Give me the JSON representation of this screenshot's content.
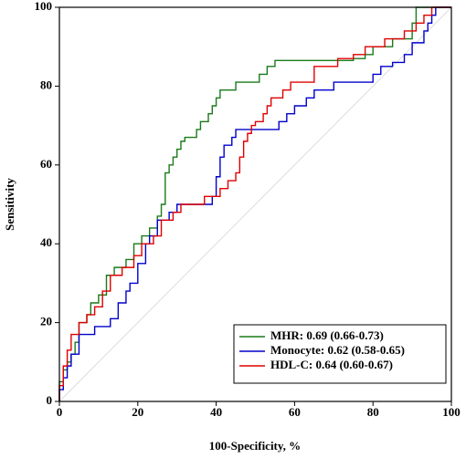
{
  "chart_data": {
    "type": "line",
    "x_label": "100-Specificity, %",
    "y_label": "Sensitivity",
    "xlim": [
      0,
      100
    ],
    "ylim": [
      0,
      100
    ],
    "xticks": [
      0,
      20,
      40,
      60,
      80,
      100
    ],
    "yticks": [
      0,
      20,
      40,
      60,
      80,
      100
    ],
    "legend": "lower right",
    "series": [
      {
        "name": "MHR: 0.69 (0.66-0.73)",
        "color": "#1a7a1a",
        "x": [
          0,
          0,
          1,
          1,
          2,
          2,
          3,
          3,
          4,
          4,
          5,
          5,
          7,
          7,
          8,
          8,
          10,
          10,
          12,
          12,
          14,
          14,
          17,
          17,
          19,
          19,
          21,
          21,
          23,
          23,
          25,
          25,
          26,
          26,
          27,
          27,
          28,
          28,
          29,
          29,
          30,
          30,
          31,
          31,
          32,
          32,
          35,
          35,
          36,
          36,
          38,
          38,
          39,
          39,
          40,
          40,
          41,
          41,
          45,
          45,
          51,
          51,
          53,
          53,
          55,
          55,
          75,
          75,
          78,
          78,
          80,
          80,
          85,
          85,
          90,
          90,
          91,
          91,
          100
        ],
        "values": [
          0,
          5,
          5,
          8,
          8,
          10,
          10,
          12,
          12,
          15,
          15,
          20,
          20,
          22,
          22,
          25,
          25,
          27,
          27,
          32,
          32,
          34,
          34,
          36,
          36,
          40,
          40,
          42,
          42,
          44,
          44,
          47,
          47,
          50,
          50,
          58,
          58,
          60,
          60,
          62,
          62,
          64,
          64,
          66,
          66,
          67,
          67,
          69,
          69,
          71,
          71,
          73,
          73,
          75,
          75,
          77,
          77,
          79,
          79,
          81,
          81,
          83,
          83,
          85,
          85,
          86.5,
          86.5,
          87,
          87,
          88,
          88,
          90,
          90,
          92,
          92,
          96,
          96,
          100,
          100
        ]
      },
      {
        "name": "Monocyte: 0.62 (0.58-0.65)",
        "color": "#0000cc",
        "x": [
          0,
          0,
          1,
          1,
          2,
          2,
          3,
          3,
          5,
          5,
          9,
          9,
          13,
          13,
          15,
          15,
          17,
          17,
          18,
          18,
          20,
          20,
          22,
          22,
          23,
          23,
          25,
          25,
          28,
          28,
          30,
          30,
          39,
          39,
          40,
          40,
          41,
          41,
          42,
          42,
          44,
          44,
          45,
          45,
          56,
          56,
          58,
          58,
          60,
          60,
          63,
          63,
          65,
          65,
          70,
          70,
          80,
          80,
          82,
          82,
          85,
          85,
          88,
          88,
          90,
          90,
          93,
          93,
          94,
          94,
          95,
          95,
          96,
          96,
          100
        ],
        "values": [
          0,
          3,
          3,
          6,
          6,
          9,
          9,
          12,
          12,
          17,
          17,
          19,
          19,
          21,
          21,
          25,
          25,
          28,
          28,
          30,
          30,
          35,
          35,
          40,
          40,
          42,
          42,
          46,
          46,
          48,
          48,
          50,
          50,
          52,
          52,
          57,
          57,
          62,
          62,
          65,
          65,
          67,
          67,
          69,
          69,
          71,
          71,
          73,
          73,
          75,
          75,
          77,
          77,
          79,
          79,
          81,
          81,
          83,
          83,
          85,
          85,
          86,
          86,
          88,
          88,
          91,
          91,
          94,
          94,
          96,
          96,
          98,
          98,
          100,
          100
        ]
      },
      {
        "name": "HDL-C: 0.64 (0.60-0.67)",
        "color": "#e00000",
        "x": [
          0,
          0,
          1,
          1,
          2,
          2,
          3,
          3,
          5,
          5,
          7,
          7,
          9,
          9,
          11,
          11,
          13,
          13,
          16,
          16,
          19,
          19,
          21,
          21,
          24,
          24,
          26,
          26,
          29,
          29,
          31,
          31,
          37,
          37,
          41,
          41,
          43,
          43,
          45,
          45,
          46,
          46,
          47,
          47,
          48,
          48,
          49,
          49,
          50,
          50,
          52,
          52,
          53,
          53,
          54,
          54,
          57,
          57,
          59,
          59,
          65,
          65,
          71,
          71,
          75,
          75,
          78,
          78,
          83,
          83,
          88,
          88,
          91,
          91,
          93,
          93,
          95,
          95,
          100
        ],
        "values": [
          0,
          4,
          4,
          9,
          9,
          13,
          13,
          17,
          17,
          20,
          20,
          22,
          22,
          24,
          24,
          28,
          28,
          32,
          32,
          34,
          34,
          37,
          37,
          40,
          40,
          42,
          42,
          46,
          46,
          48,
          48,
          50,
          50,
          52,
          52,
          54,
          54,
          56,
          56,
          58,
          58,
          62,
          62,
          66,
          66,
          68,
          68,
          70,
          70,
          71,
          71,
          73,
          73,
          75,
          75,
          77,
          77,
          79,
          79,
          81,
          81,
          85,
          85,
          87,
          87,
          88,
          88,
          90,
          90,
          92,
          92,
          94,
          94,
          96,
          96,
          98,
          98,
          100,
          100
        ]
      }
    ]
  }
}
